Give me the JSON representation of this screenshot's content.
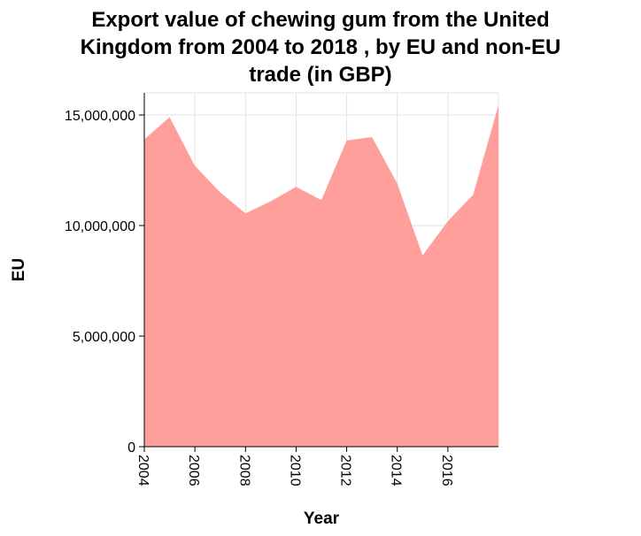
{
  "chart_data": {
    "type": "area",
    "title_lines": [
      "Export value of chewing gum from the United",
      "Kingdom from 2004 to 2018 , by EU and non-EU",
      "trade (in GBP)"
    ],
    "xlabel": "Year",
    "ylabel": "EU",
    "x": [
      2004,
      2005,
      2006,
      2007,
      2008,
      2009,
      2010,
      2011,
      2012,
      2013,
      2014,
      2015,
      2016,
      2017,
      2018
    ],
    "series": [
      {
        "values": [
          13900000,
          14900000,
          12700000,
          11500000,
          10550000,
          11100000,
          11750000,
          11150000,
          13850000,
          14000000,
          11900000,
          8650000,
          10200000,
          11400000,
          15450000
        ]
      }
    ],
    "xlim": [
      2004,
      2018
    ],
    "ylim": [
      0,
      16000000
    ],
    "x_ticks": [
      2004,
      2006,
      2008,
      2010,
      2012,
      2014,
      2016
    ],
    "x_tick_labels": [
      "2004",
      "2006",
      "2008",
      "2010",
      "2012",
      "2014",
      "2016"
    ],
    "y_ticks": [
      0,
      5000000,
      10000000,
      15000000
    ],
    "y_tick_labels": [
      "0",
      "5,000,000",
      "10,000,000",
      "15,000,000"
    ],
    "grid": true,
    "legend": "none",
    "colors": {
      "fill": "#ff9f9b",
      "grid": "#e3e3e3",
      "axis": "#000000"
    }
  }
}
